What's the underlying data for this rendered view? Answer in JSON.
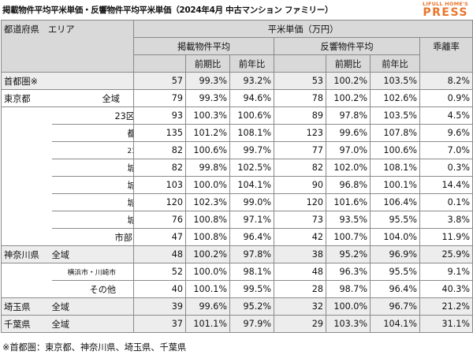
{
  "header": {
    "title": "掲載物件平均平米単価・反響物件平均平米単価（2024年4月 中古マンション ファミリー）",
    "logo_top": "LIFULL HOME'S",
    "logo_main": "PRESS"
  },
  "table": {
    "headers": {
      "region": "都道府県　エリア",
      "unit": "平米単価（万円）",
      "listed": "掲載物件平均",
      "response": "反響物件平均",
      "gap": "乖離率",
      "prev_month": "前期比",
      "prev_year": "前年比"
    },
    "rows": [
      {
        "region": "首都圏※",
        "area": "",
        "listed": "57",
        "listed_mom": "99.3%",
        "listed_yoy": "93.2%",
        "resp": "53",
        "resp_mom": "100.2%",
        "resp_yoy": "103.5%",
        "gap": "8.2%"
      },
      {
        "region": "東京都",
        "area": "全域",
        "listed": "79",
        "listed_mom": "99.3%",
        "listed_yoy": "94.6%",
        "resp": "78",
        "resp_mom": "100.2%",
        "resp_yoy": "102.6%",
        "gap": "0.9%"
      },
      {
        "region": "",
        "area": "23区",
        "listed": "93",
        "listed_mom": "100.3%",
        "listed_yoy": "100.6%",
        "resp": "89",
        "resp_mom": "97.8%",
        "resp_yoy": "103.5%",
        "gap": "4.5%"
      },
      {
        "region": "",
        "area": "都心6区",
        "listed": "135",
        "listed_mom": "101.2%",
        "listed_yoy": "108.1%",
        "resp": "123",
        "resp_mom": "99.6%",
        "resp_yoy": "107.8%",
        "gap": "9.6%"
      },
      {
        "region": "",
        "area": "23区その他",
        "listed": "82",
        "listed_mom": "100.6%",
        "listed_yoy": "99.7%",
        "resp": "77",
        "resp_mom": "97.0%",
        "resp_yoy": "100.6%",
        "gap": "7.0%"
      },
      {
        "region": "",
        "area": "城東",
        "listed": "82",
        "listed_mom": "99.8%",
        "listed_yoy": "102.5%",
        "resp": "82",
        "resp_mom": "102.0%",
        "resp_yoy": "108.1%",
        "gap": "0.3%"
      },
      {
        "region": "",
        "area": "城西",
        "listed": "103",
        "listed_mom": "100.0%",
        "listed_yoy": "104.1%",
        "resp": "90",
        "resp_mom": "96.8%",
        "resp_yoy": "100.1%",
        "gap": "14.4%"
      },
      {
        "region": "",
        "area": "城南",
        "listed": "120",
        "listed_mom": "102.3%",
        "listed_yoy": "99.0%",
        "resp": "120",
        "resp_mom": "101.6%",
        "resp_yoy": "106.4%",
        "gap": "0.1%"
      },
      {
        "region": "",
        "area": "城北",
        "listed": "76",
        "listed_mom": "100.8%",
        "listed_yoy": "97.1%",
        "resp": "73",
        "resp_mom": "93.5%",
        "resp_yoy": "95.5%",
        "gap": "3.8%"
      },
      {
        "region": "",
        "area": "市部",
        "listed": "47",
        "listed_mom": "100.8%",
        "listed_yoy": "96.4%",
        "resp": "42",
        "resp_mom": "100.7%",
        "resp_yoy": "104.0%",
        "gap": "11.9%"
      },
      {
        "region": "神奈川県",
        "area": "全域",
        "listed": "48",
        "listed_mom": "100.2%",
        "listed_yoy": "97.8%",
        "resp": "38",
        "resp_mom": "95.2%",
        "resp_yoy": "96.9%",
        "gap": "25.9%"
      },
      {
        "region": "",
        "area": "横浜市・川崎市",
        "listed": "52",
        "listed_mom": "100.0%",
        "listed_yoy": "98.1%",
        "resp": "48",
        "resp_mom": "96.3%",
        "resp_yoy": "95.5%",
        "gap": "9.1%"
      },
      {
        "region": "",
        "area": "その他",
        "listed": "40",
        "listed_mom": "100.1%",
        "listed_yoy": "99.5%",
        "resp": "28",
        "resp_mom": "98.7%",
        "resp_yoy": "96.4%",
        "gap": "40.3%"
      },
      {
        "region": "埼玉県",
        "area": "全域",
        "listed": "39",
        "listed_mom": "99.6%",
        "listed_yoy": "95.2%",
        "resp": "32",
        "resp_mom": "100.0%",
        "resp_yoy": "96.7%",
        "gap": "21.2%"
      },
      {
        "region": "千葉県",
        "area": "全域",
        "listed": "37",
        "listed_mom": "101.1%",
        "listed_yoy": "97.9%",
        "resp": "29",
        "resp_mom": "103.3%",
        "resp_yoy": "104.1%",
        "gap": "31.1%"
      }
    ]
  },
  "footnote": "※首都圏：東京都、神奈川県、埼玉県、千葉県"
}
